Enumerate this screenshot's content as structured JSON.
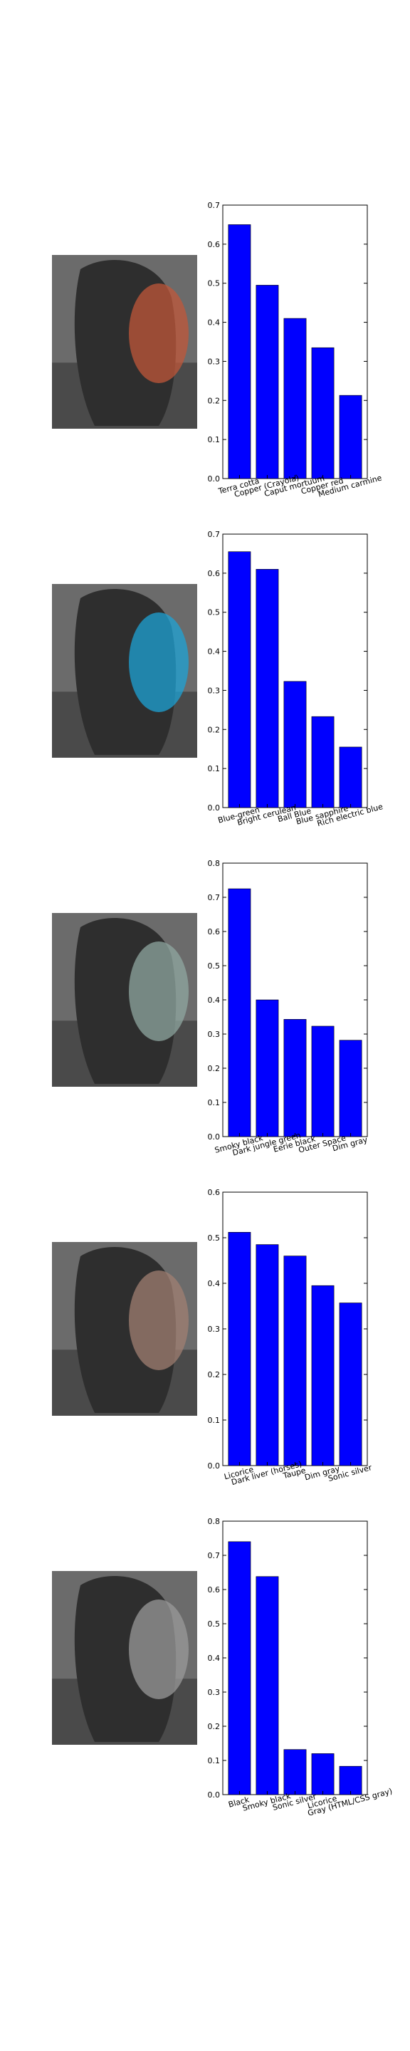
{
  "chart_data": [
    {
      "type": "bar",
      "categories": [
        "Terra cotta",
        "Copper (Crayola)",
        "Caput mortuum",
        "Copper red",
        "Medium carmine"
      ],
      "values": [
        0.65,
        0.495,
        0.41,
        0.335,
        0.213
      ],
      "ylim": [
        0,
        0.7
      ],
      "yticks": [
        "0.0",
        "0.1",
        "0.2",
        "0.3",
        "0.4",
        "0.5",
        "0.6",
        "0.7"
      ],
      "bar_color": "#0000ff",
      "photo_tint": "#c0573a",
      "photo_tint_name": "terra-cotta-tint"
    },
    {
      "type": "bar",
      "categories": [
        "Blue-green",
        "Bright cerulean",
        "Ball Blue",
        "Blue sapphire",
        "Rich electric blue"
      ],
      "values": [
        0.655,
        0.61,
        0.323,
        0.233,
        0.155
      ],
      "ylim": [
        0,
        0.7
      ],
      "yticks": [
        "0.0",
        "0.1",
        "0.2",
        "0.3",
        "0.4",
        "0.5",
        "0.6",
        "0.7"
      ],
      "bar_color": "#0000ff",
      "photo_tint": "#1ea3d6",
      "photo_tint_name": "cerulean-tint"
    },
    {
      "type": "bar",
      "categories": [
        "Smoky black",
        "Dark jungle green",
        "Eerie black",
        "Outer Space",
        "Dim gray"
      ],
      "values": [
        0.725,
        0.4,
        0.343,
        0.323,
        0.282
      ],
      "ylim": [
        0,
        0.8
      ],
      "yticks": [
        "0.0",
        "0.1",
        "0.2",
        "0.3",
        "0.4",
        "0.5",
        "0.6",
        "0.7",
        "0.8"
      ],
      "bar_color": "#0000ff",
      "photo_tint": "#8fa7a0",
      "photo_tint_name": "outer-space-tint"
    },
    {
      "type": "bar",
      "categories": [
        "Licorice",
        "Dark liver (horses)",
        "Taupe",
        "Dim gray",
        "Sonic silver"
      ],
      "values": [
        0.512,
        0.485,
        0.46,
        0.395,
        0.357
      ],
      "ylim": [
        0,
        0.6
      ],
      "yticks": [
        "0.0",
        "0.1",
        "0.2",
        "0.3",
        "0.4",
        "0.5",
        "0.6"
      ],
      "bar_color": "#0000ff",
      "photo_tint": "#a07f72",
      "photo_tint_name": "taupe-tint"
    },
    {
      "type": "bar",
      "categories": [
        "Black",
        "Smoky black",
        "Sonic silver",
        "Licorice",
        "Gray (HTML/CSS gray)"
      ],
      "values": [
        0.74,
        0.638,
        0.132,
        0.12,
        0.083
      ],
      "ylim": [
        0,
        0.8
      ],
      "yticks": [
        "0.0",
        "0.1",
        "0.2",
        "0.3",
        "0.4",
        "0.5",
        "0.6",
        "0.7",
        "0.8"
      ],
      "bar_color": "#0000ff",
      "photo_tint": "#9a9a9a",
      "photo_tint_name": "gray-tint"
    }
  ]
}
